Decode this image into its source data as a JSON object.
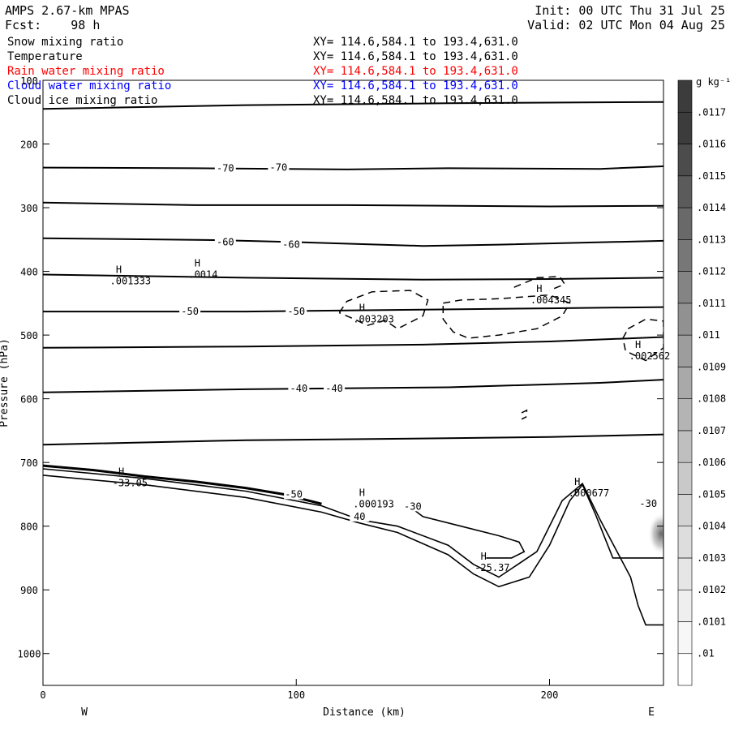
{
  "header": {
    "model": "AMPS 2.67-km MPAS",
    "forecast": "Fcst:    98 h",
    "init": "Init: 00 UTC Thu 31 Jul 25",
    "valid": "Valid: 02 UTC Mon 04 Aug 25"
  },
  "legend": [
    {
      "name": "Snow mixing ratio",
      "xy": "XY= 114.6,584.1 to 193.4,631.0",
      "color": "#000000"
    },
    {
      "name": "Temperature",
      "xy": "XY= 114.6,584.1 to 193.4,631.0",
      "color": "#000000"
    },
    {
      "name": "Rain water mixing ratio",
      "xy": "XY= 114.6,584.1 to 193.4,631.0",
      "color": "#ff0000"
    },
    {
      "name": "Cloud water mixing ratio",
      "xy": "XY= 114.6,584.1 to 193.4,631.0",
      "color": "#0000ff"
    },
    {
      "name": "Cloud ice mixing ratio",
      "xy": "XY= 114.6,584.1 to 193.4,631.0",
      "color": "#000000"
    }
  ],
  "colorbar": {
    "unit": "g kg⁻¹",
    "levels": [
      ".01",
      ".0101",
      ".0102",
      ".0103",
      ".0104",
      ".0105",
      ".0106",
      ".0107",
      ".0108",
      ".0109",
      ".011",
      ".0111",
      ".0112",
      ".0113",
      ".0114",
      ".0115",
      ".0116",
      ".0117"
    ],
    "colors": [
      "#ffffff",
      "#f7f7f7",
      "#efefef",
      "#e6e6e6",
      "#dddddd",
      "#d3d3d3",
      "#c9c9c9",
      "#bfbfbf",
      "#b4b4b4",
      "#a9a9a9",
      "#9d9d9d",
      "#919191",
      "#848484",
      "#777777",
      "#696969",
      "#5b5b5b",
      "#4c4c4c",
      "#3c3c3c"
    ]
  },
  "chart_data": {
    "type": "cross-section contour",
    "xlabel": "Distance (km)",
    "ylabel": "Pressure (hPa)",
    "xlim": [
      0,
      245
    ],
    "ylim": [
      1050,
      100
    ],
    "xticks": [
      0,
      100,
      200
    ],
    "yticks": [
      100,
      200,
      300,
      400,
      500,
      600,
      700,
      800,
      900,
      1000
    ],
    "x_end_labels": {
      "left": "W",
      "right": "E"
    },
    "isotherms": [
      {
        "points": [
          [
            0,
            145
          ],
          [
            80,
            139
          ],
          [
            160,
            136
          ],
          [
            245,
            134
          ]
        ]
      },
      {
        "points": [
          [
            0,
            237
          ],
          [
            60,
            238
          ],
          [
            120,
            240
          ],
          [
            160,
            238
          ],
          [
            220,
            239
          ],
          [
            245,
            235
          ]
        ],
        "labels": [
          {
            "x": 72,
            "y": 238,
            "text": "-70"
          },
          {
            "x": 93,
            "y": 237,
            "text": "-70"
          }
        ]
      },
      {
        "points": [
          [
            0,
            292
          ],
          [
            60,
            296
          ],
          [
            120,
            296
          ],
          [
            200,
            298
          ],
          [
            245,
            297
          ]
        ]
      },
      {
        "points": [
          [
            0,
            348
          ],
          [
            70,
            351
          ],
          [
            100,
            354
          ],
          [
            150,
            360
          ],
          [
            180,
            358
          ],
          [
            245,
            352
          ]
        ],
        "labels": [
          {
            "x": 72,
            "y": 354,
            "text": "-60"
          },
          {
            "x": 98,
            "y": 358,
            "text": "-60"
          }
        ]
      },
      {
        "points": [
          [
            0,
            405
          ],
          [
            80,
            410
          ],
          [
            150,
            413
          ],
          [
            200,
            412
          ],
          [
            245,
            410
          ]
        ]
      },
      {
        "points": [
          [
            0,
            463
          ],
          [
            80,
            463
          ],
          [
            150,
            460
          ],
          [
            200,
            458
          ],
          [
            245,
            456
          ]
        ],
        "labels": [
          {
            "x": 58,
            "y": 463,
            "text": "-50"
          },
          {
            "x": 100,
            "y": 463,
            "text": "-50"
          }
        ]
      },
      {
        "points": [
          [
            0,
            520
          ],
          [
            80,
            518
          ],
          [
            150,
            515
          ],
          [
            200,
            510
          ],
          [
            245,
            503
          ]
        ]
      },
      {
        "points": [
          [
            0,
            590
          ],
          [
            80,
            585
          ],
          [
            160,
            582
          ],
          [
            220,
            575
          ],
          [
            245,
            570
          ]
        ],
        "labels": [
          {
            "x": 101,
            "y": 584,
            "text": "-40"
          },
          {
            "x": 115,
            "y": 584,
            "text": "-40"
          }
        ]
      },
      {
        "points": [
          [
            0,
            672
          ],
          [
            80,
            665
          ],
          [
            160,
            662
          ],
          [
            200,
            660
          ],
          [
            245,
            656
          ]
        ]
      }
    ],
    "snow_contours": [
      {
        "points": [
          [
            117,
            465
          ],
          [
            120,
            447
          ],
          [
            130,
            432
          ],
          [
            145,
            430
          ],
          [
            152,
            445
          ],
          [
            150,
            470
          ],
          [
            145,
            480
          ],
          [
            140,
            490
          ],
          [
            135,
            477
          ],
          [
            128,
            485
          ],
          [
            123,
            475
          ],
          [
            117,
            465
          ]
        ]
      },
      {
        "points": [
          [
            158,
            450
          ],
          [
            165,
            445
          ],
          [
            180,
            443
          ],
          [
            190,
            440
          ],
          [
            200,
            437
          ],
          [
            208,
            450
          ],
          [
            205,
            470
          ],
          [
            195,
            490
          ],
          [
            180,
            500
          ],
          [
            168,
            505
          ],
          [
            162,
            495
          ],
          [
            158,
            475
          ],
          [
            158,
            450
          ]
        ]
      },
      {
        "points": [
          [
            186,
            425
          ],
          [
            195,
            410
          ],
          [
            204,
            408
          ],
          [
            206,
            420
          ],
          [
            200,
            430
          ]
        ]
      },
      {
        "points": [
          [
            231,
            490
          ],
          [
            238,
            475
          ],
          [
            245,
            478
          ],
          [
            245,
            520
          ],
          [
            238,
            540
          ],
          [
            230,
            525
          ],
          [
            229,
            505
          ],
          [
            231,
            490
          ]
        ]
      },
      {
        "points": [
          [
            189,
            622
          ],
          [
            191,
            618
          ],
          [
            191,
            628
          ],
          [
            189,
            632
          ]
        ]
      }
    ],
    "terrain": [
      {
        "points": [
          [
            0,
            710
          ],
          [
            40,
            725
          ],
          [
            80,
            745
          ],
          [
            110,
            768
          ],
          [
            125,
            790
          ],
          [
            140,
            800
          ],
          [
            160,
            830
          ],
          [
            170,
            860
          ],
          [
            180,
            880
          ],
          [
            195,
            840
          ],
          [
            205,
            760
          ],
          [
            213,
            733
          ],
          [
            220,
            790
          ],
          [
            226,
            835
          ],
          [
            232,
            880
          ],
          [
            235,
            925
          ],
          [
            238,
            955
          ],
          [
            245,
            955
          ]
        ]
      },
      {
        "points": [
          [
            0,
            720
          ],
          [
            40,
            735
          ],
          [
            80,
            755
          ],
          [
            110,
            778
          ],
          [
            125,
            795
          ],
          [
            140,
            810
          ],
          [
            160,
            845
          ],
          [
            170,
            875
          ],
          [
            180,
            895
          ],
          [
            192,
            880
          ],
          [
            200,
            830
          ],
          [
            208,
            760
          ],
          [
            213,
            735
          ],
          [
            218,
            780
          ],
          [
            225,
            850
          ],
          [
            245,
            850
          ]
        ]
      },
      {
        "points": [
          [
            0,
            705
          ],
          [
            20,
            712
          ],
          [
            40,
            722
          ],
          [
            60,
            730
          ],
          [
            80,
            740
          ],
          [
            95,
            750
          ],
          [
            110,
            765
          ]
        ]
      },
      {
        "points": [
          [
            145,
            770
          ],
          [
            150,
            785
          ],
          [
            165,
            800
          ],
          [
            180,
            815
          ],
          [
            188,
            825
          ],
          [
            190,
            840
          ],
          [
            185,
            850
          ],
          [
            175,
            850
          ]
        ]
      }
    ],
    "maxima": [
      {
        "x": 29,
        "y": 410,
        "value": ".001333"
      },
      {
        "x": 60,
        "y": 400,
        "value": ".0014"
      },
      {
        "x": 125,
        "y": 470,
        "value": ".003203"
      },
      {
        "x": 195,
        "y": 440,
        "value": ".004345"
      },
      {
        "x": 234,
        "y": 528,
        "value": ".002562"
      },
      {
        "x": 30,
        "y": 727,
        "value": "-33.05"
      },
      {
        "x": 125,
        "y": 760,
        "value": ".000193"
      },
      {
        "x": 173,
        "y": 860,
        "value": "-25.37"
      },
      {
        "x": 210,
        "y": 743,
        "value": ".000677"
      }
    ],
    "extra_labels": [
      {
        "x": 146,
        "y": 769,
        "text": "-30"
      },
      {
        "x": 239,
        "y": 765,
        "text": "-30"
      },
      {
        "x": 99,
        "y": 750,
        "text": "-50"
      },
      {
        "x": 125,
        "y": 785,
        "text": "40"
      }
    ],
    "shaded": [
      {
        "x": 244,
        "y": 812,
        "value": 0.0105
      }
    ]
  }
}
